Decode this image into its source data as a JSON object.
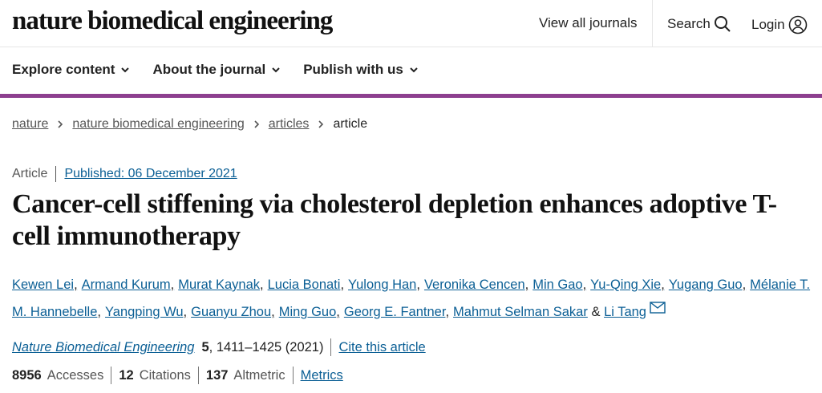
{
  "header": {
    "logo": "nature biomedical engineering",
    "links": [
      "View all journals",
      "Search",
      "Login"
    ]
  },
  "nav": [
    "Explore content",
    "About the journal",
    "Publish with us"
  ],
  "breadcrumbs": [
    "nature",
    "nature biomedical engineering",
    "articles",
    "article"
  ],
  "article": {
    "type": "Article",
    "published": "Published: 06 December 2021",
    "title": "Cancer-cell stiffening via cholesterol depletion enhances adoptive T-cell immunotherapy",
    "authors": [
      "Kewen Lei",
      "Armand Kurum",
      "Murat Kaynak",
      "Lucia Bonati",
      "Yulong Han",
      "Veronika Cencen",
      "Min Gao",
      "Yu-Qing Xie",
      "Yugang Guo",
      "Mélanie T. M. Hannebelle",
      "Yangping Wu",
      "Guanyu Zhou",
      "Ming Guo",
      "Georg E. Fantner",
      "Mahmut Selman Sakar",
      "Li Tang"
    ],
    "and": "&",
    "journal": "Nature Biomedical Engineering",
    "volume": 5,
    "pages": ", 1411–1425 (2021)",
    "cite": "Cite this article",
    "metrics": [
      {
        "value": 8956,
        "label": "Accesses"
      },
      {
        "value": 12,
        "label": "Citations"
      },
      {
        "value": 137,
        "label": "Altmetric"
      }
    ],
    "metrics_link": "Metrics"
  }
}
